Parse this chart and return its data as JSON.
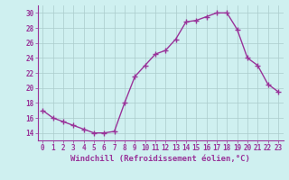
{
  "x": [
    0,
    1,
    2,
    3,
    4,
    5,
    6,
    7,
    8,
    9,
    10,
    11,
    12,
    13,
    14,
    15,
    16,
    17,
    18,
    19,
    20,
    21,
    22,
    23
  ],
  "y": [
    17.0,
    16.0,
    15.5,
    15.0,
    14.5,
    14.0,
    14.0,
    14.2,
    18.0,
    21.5,
    23.0,
    24.5,
    25.0,
    26.5,
    28.8,
    29.0,
    29.5,
    30.0,
    30.0,
    27.8,
    24.0,
    23.0,
    20.5,
    19.5
  ],
  "line_color": "#993399",
  "marker": "+",
  "marker_size": 4,
  "marker_linewidth": 1.0,
  "line_width": 1.0,
  "bg_color": "#cff0f0",
  "grid_color": "#aacccc",
  "xlabel": "Windchill (Refroidissement éolien,°C)",
  "xlim": [
    -0.5,
    23.5
  ],
  "ylim": [
    13.0,
    31.0
  ],
  "yticks": [
    14,
    16,
    18,
    20,
    22,
    24,
    26,
    28,
    30
  ],
  "xticks": [
    0,
    1,
    2,
    3,
    4,
    5,
    6,
    7,
    8,
    9,
    10,
    11,
    12,
    13,
    14,
    15,
    16,
    17,
    18,
    19,
    20,
    21,
    22,
    23
  ],
  "tick_color": "#993399",
  "tick_fontsize": 5.5,
  "xlabel_fontsize": 6.5,
  "spine_color": "#993399"
}
